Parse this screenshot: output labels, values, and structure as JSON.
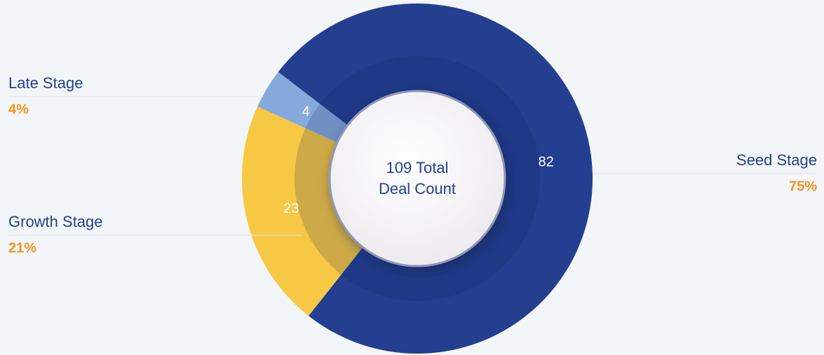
{
  "chart_data": {
    "type": "donut",
    "categories": [
      "Seed Stage",
      "Growth Stage",
      "Late Stage"
    ],
    "values": [
      82,
      23,
      4
    ],
    "share_labels": [
      "75%",
      "21%",
      "4%"
    ],
    "colors": [
      "#243f8f",
      "#f7c843",
      "#86a9db"
    ],
    "center_lines": [
      "109 Total",
      "Deal Count"
    ]
  }
}
